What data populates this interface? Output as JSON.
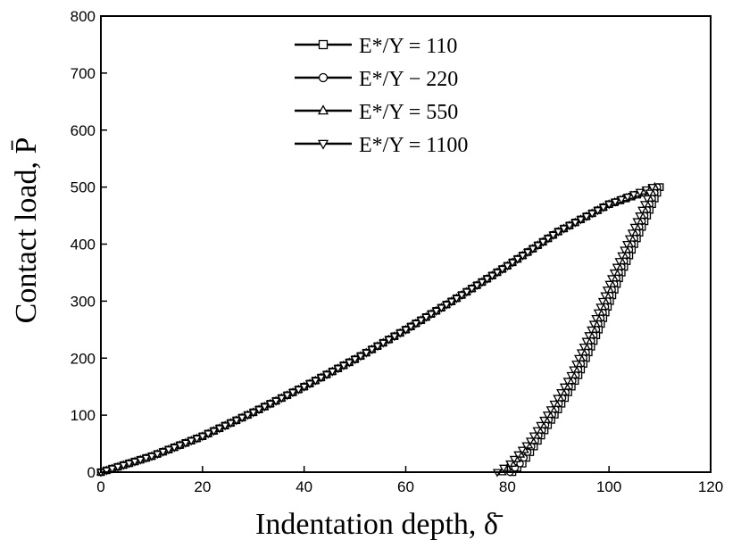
{
  "chart_data": {
    "type": "line",
    "title": "",
    "xlabel": "Indentation depth, δ̄",
    "ylabel": "Contact load, P̄",
    "xlim": [
      0,
      120
    ],
    "ylim": [
      0,
      800
    ],
    "xticks": [
      "0",
      "20",
      "40",
      "60",
      "80",
      "100",
      "120"
    ],
    "yticks": [
      "0",
      "100",
      "200",
      "300",
      "400",
      "500",
      "600",
      "700",
      "800"
    ],
    "grid": false,
    "legend_position": "top-center",
    "series": [
      {
        "name": "E*/Y = 110",
        "marker": "square",
        "loading": {
          "x": [
            0,
            10,
            20,
            30,
            40,
            50,
            60,
            70,
            80,
            90,
            100,
            110
          ],
          "y": [
            0,
            28,
            63,
            105,
            150,
            198,
            250,
            305,
            362,
            422,
            470,
            500
          ]
        },
        "unloading": {
          "x": [
            110,
            106,
            102,
            98,
            94,
            90,
            86,
            83,
            81
          ],
          "y": [
            500,
            420,
            340,
            250,
            170,
            110,
            55,
            15,
            0
          ]
        }
      },
      {
        "name": "E*/Y − 220",
        "marker": "circle",
        "loading": {
          "x": [
            0,
            10,
            20,
            30,
            40,
            50,
            60,
            70,
            80,
            90,
            100,
            109.5
          ],
          "y": [
            0,
            28,
            63,
            105,
            150,
            198,
            250,
            305,
            362,
            422,
            470,
            500
          ]
        },
        "unloading": {
          "x": [
            109.5,
            105.5,
            101.5,
            97.5,
            93.5,
            89.5,
            85.5,
            82.5,
            80.5
          ],
          "y": [
            500,
            420,
            340,
            250,
            170,
            110,
            55,
            15,
            0
          ]
        }
      },
      {
        "name": "E*/Y = 550",
        "marker": "triangle-up",
        "loading": {
          "x": [
            0,
            10,
            20,
            30,
            40,
            50,
            60,
            70,
            80,
            90,
            100,
            109
          ],
          "y": [
            0,
            28,
            63,
            105,
            150,
            198,
            250,
            305,
            362,
            422,
            470,
            500
          ]
        },
        "unloading": {
          "x": [
            109,
            105,
            101,
            97,
            93,
            89,
            85,
            81,
            79
          ],
          "y": [
            500,
            420,
            340,
            250,
            170,
            110,
            55,
            15,
            0
          ]
        }
      },
      {
        "name": "E*/Y = 1100",
        "marker": "triangle-down",
        "loading": {
          "x": [
            0,
            10,
            20,
            30,
            40,
            50,
            60,
            70,
            80,
            90,
            100,
            108.5
          ],
          "y": [
            0,
            28,
            63,
            105,
            150,
            198,
            250,
            305,
            362,
            422,
            470,
            500
          ]
        },
        "unloading": {
          "x": [
            108.5,
            104.5,
            100.5,
            96.5,
            92.5,
            88.5,
            84.5,
            80.5,
            78
          ],
          "y": [
            500,
            420,
            340,
            250,
            170,
            110,
            55,
            15,
            0
          ]
        }
      }
    ]
  }
}
